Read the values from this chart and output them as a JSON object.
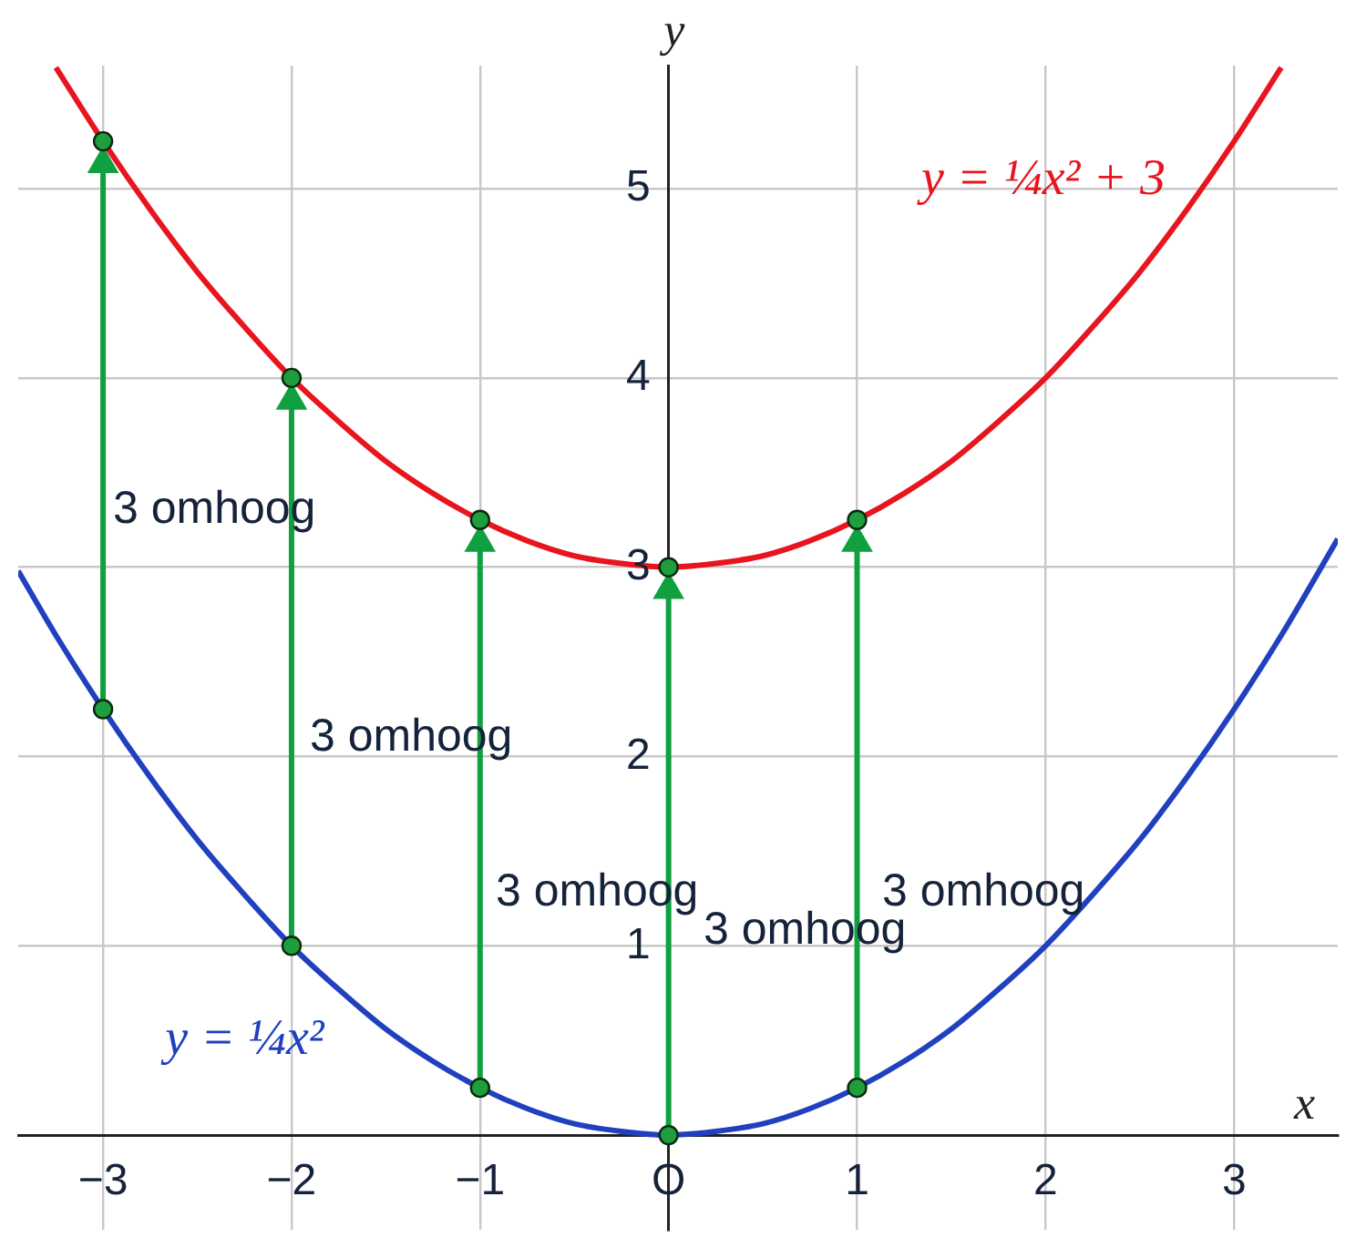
{
  "chart_data": {
    "type": "line",
    "xlabel": "x",
    "ylabel": "y",
    "xlim": [
      -3.45,
      3.55
    ],
    "ylim": [
      -0.5,
      5.65
    ],
    "xticks": [
      {
        "value": -3,
        "label": "−3"
      },
      {
        "value": -2,
        "label": "−2"
      },
      {
        "value": -1,
        "label": "−1"
      },
      {
        "value": 0,
        "label": "O"
      },
      1,
      2,
      3
    ],
    "yticks": [
      {
        "value": 0,
        "label": null
      },
      1,
      2,
      3,
      4,
      5
    ],
    "grid": true,
    "legend": false,
    "series": [
      {
        "name": "y = ¼x²",
        "color": "#2040c0",
        "marker": "none",
        "x": [
          -3.45,
          -3.25,
          -3,
          -2.75,
          -2.5,
          -2.25,
          -2,
          -1.75,
          -1.5,
          -1.25,
          -1,
          -0.75,
          -0.5,
          -0.25,
          0,
          0.25,
          0.5,
          0.75,
          1,
          1.25,
          1.5,
          1.75,
          2,
          2.25,
          2.5,
          2.75,
          3,
          3.25,
          3.55
        ],
        "values": [
          2.98,
          2.64,
          2.25,
          1.89,
          1.56,
          1.27,
          1,
          0.77,
          0.56,
          0.39,
          0.25,
          0.14,
          0.06,
          0.02,
          0,
          0.02,
          0.06,
          0.14,
          0.25,
          0.39,
          0.56,
          0.77,
          1,
          1.27,
          1.56,
          1.89,
          2.25,
          2.64,
          3.15
        ]
      },
      {
        "name": "y = ¼x² + 3",
        "color": "#e8141e",
        "marker": "none",
        "x": [
          -3.25,
          -3,
          -2.75,
          -2.5,
          -2.25,
          -2,
          -1.75,
          -1.5,
          -1.25,
          -1,
          -0.75,
          -0.5,
          -0.25,
          0,
          0.25,
          0.5,
          0.75,
          1,
          1.25,
          1.5,
          1.75,
          2,
          2.25,
          2.5,
          2.75,
          3,
          3.25
        ],
        "values": [
          5.64,
          5.25,
          4.89,
          4.56,
          4.27,
          4,
          3.77,
          3.56,
          3.39,
          3.25,
          3.14,
          3.06,
          3.02,
          3,
          3.02,
          3.06,
          3.14,
          3.25,
          3.39,
          3.56,
          3.77,
          4,
          4.27,
          4.56,
          4.89,
          5.25,
          5.64
        ]
      },
      {
        "color": "#10a040",
        "marker": "triangle",
        "x": [
          -3,
          -3
        ],
        "values": [
          2.25,
          5.13
        ]
      },
      {
        "color": "#10a040",
        "marker": "triangle",
        "x": [
          -2,
          -2
        ],
        "values": [
          1,
          3.88
        ]
      },
      {
        "color": "#10a040",
        "marker": "triangle",
        "x": [
          -1,
          -1
        ],
        "values": [
          0.25,
          3.13
        ]
      },
      {
        "color": "#10a040",
        "marker": "triangle",
        "x": [
          0,
          0
        ],
        "values": [
          0,
          2.88
        ]
      },
      {
        "color": "#10a040",
        "marker": "triangle",
        "x": [
          1,
          1
        ],
        "values": [
          0.25,
          3.13
        ]
      },
      {
        "type": "scatter",
        "color": "#1e9e3c",
        "marker": "circle",
        "x": [
          -3,
          -2,
          -1,
          0,
          1,
          -3,
          -2,
          -1,
          0,
          1
        ],
        "values": [
          2.25,
          1,
          0.25,
          0,
          0.25,
          5.25,
          4,
          3.25,
          3,
          3.25
        ]
      }
    ],
    "annotations": [
      "3 omhoog",
      "3 omhoog",
      "3 omhoog",
      "3 omhoog",
      "3 omhoog"
    ]
  }
}
